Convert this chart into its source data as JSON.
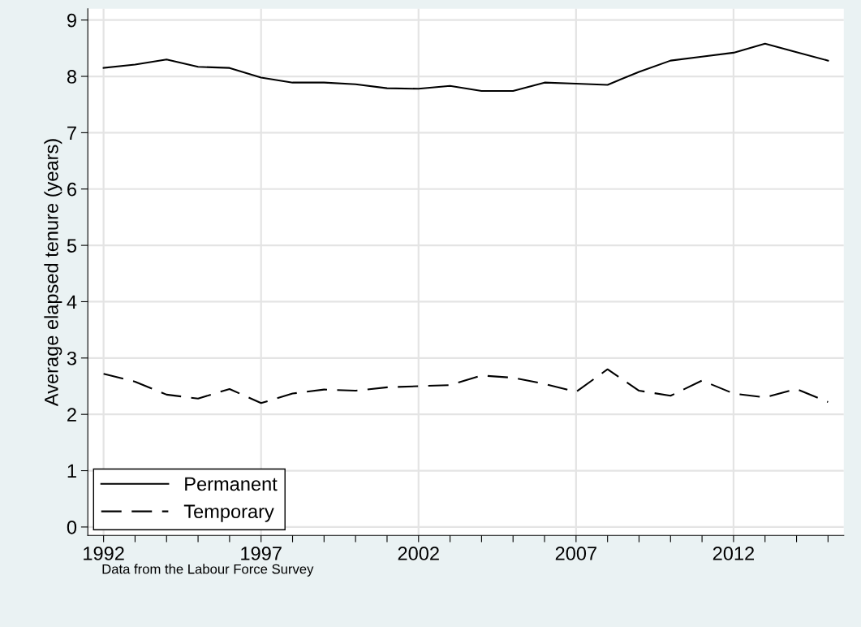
{
  "chart_data": {
    "type": "line",
    "ylabel": "Average elapsed tenure (years)",
    "x": [
      1992,
      1993,
      1994,
      1995,
      1996,
      1997,
      1998,
      1999,
      2000,
      2001,
      2002,
      2003,
      2004,
      2005,
      2006,
      2007,
      2008,
      2009,
      2010,
      2011,
      2012,
      2013,
      2014,
      2015
    ],
    "series": [
      {
        "name": "Permanent",
        "color": "#000000",
        "line_style": "solid",
        "values": [
          8.15,
          8.21,
          8.3,
          8.17,
          8.15,
          7.98,
          7.89,
          7.89,
          7.86,
          7.79,
          7.78,
          7.83,
          7.74,
          7.74,
          7.89,
          7.87,
          7.85,
          8.08,
          8.28,
          8.35,
          8.42,
          8.58,
          8.43,
          8.28
        ]
      },
      {
        "name": "Temporary",
        "color": "#000000",
        "line_style": "dashed",
        "values": [
          2.72,
          2.58,
          2.35,
          2.28,
          2.45,
          2.2,
          2.37,
          2.44,
          2.42,
          2.48,
          2.5,
          2.52,
          2.69,
          2.65,
          2.54,
          2.4,
          2.8,
          2.42,
          2.33,
          2.6,
          2.37,
          2.3,
          2.45,
          2.22
        ]
      }
    ],
    "xlim": [
      1991.5,
      2015.5
    ],
    "xticks": [
      1992,
      {
        "value": 1993,
        "label": null
      },
      {
        "value": 1994,
        "label": null
      },
      {
        "value": 1995,
        "label": null
      },
      {
        "value": 1996,
        "label": null
      },
      1997,
      {
        "value": 1998,
        "label": null
      },
      {
        "value": 1999,
        "label": null
      },
      {
        "value": 2000,
        "label": null
      },
      {
        "value": 2001,
        "label": null
      },
      2002,
      {
        "value": 2003,
        "label": null
      },
      {
        "value": 2004,
        "label": null
      },
      {
        "value": 2005,
        "label": null
      },
      {
        "value": 2006,
        "label": null
      },
      2007,
      {
        "value": 2008,
        "label": null
      },
      {
        "value": 2009,
        "label": null
      },
      {
        "value": 2010,
        "label": null
      },
      {
        "value": 2011,
        "label": null
      },
      2012,
      {
        "value": 2013,
        "label": null
      },
      {
        "value": 2014,
        "label": null
      },
      {
        "value": 2015,
        "label": null
      }
    ],
    "ylim": [
      -0.15,
      9.2
    ],
    "yticks": [
      0,
      1,
      2,
      3,
      4,
      5,
      6,
      7,
      8,
      9
    ],
    "grid": true,
    "legend": "bottom left",
    "marker": "none",
    "annotations": [
      "Data from the Labour Force Survey"
    ]
  }
}
